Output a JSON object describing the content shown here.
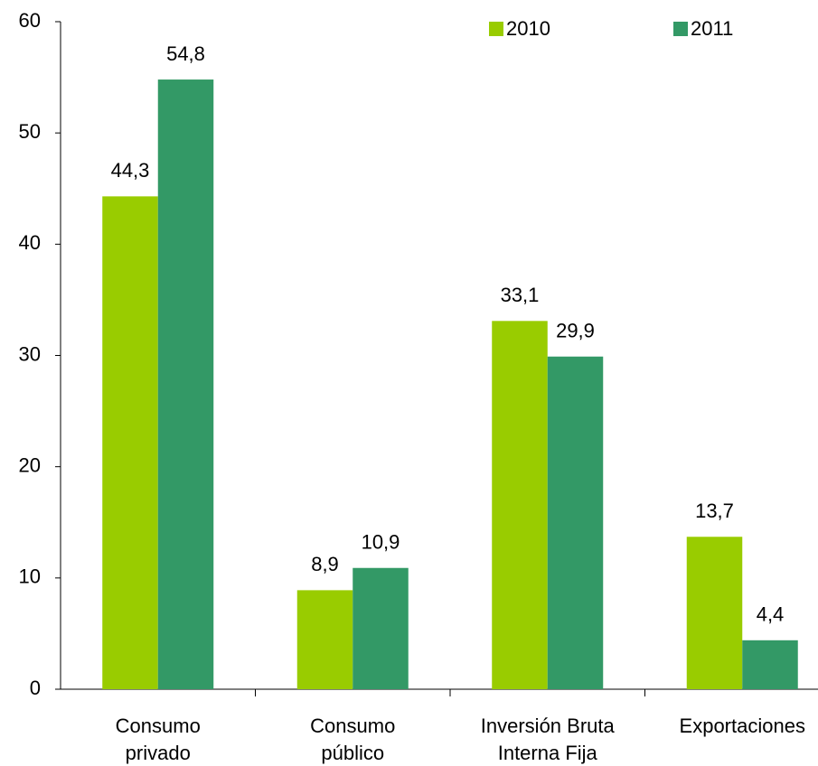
{
  "chart_data": {
    "type": "bar",
    "categories": [
      [
        "Consumo",
        "privado"
      ],
      [
        "Consumo",
        "público"
      ],
      [
        "Inversión Bruta",
        "Interna Fija"
      ],
      [
        "Exportaciones"
      ]
    ],
    "series": [
      {
        "name": "2010",
        "color": "#99cc00",
        "values": [
          44.3,
          8.9,
          33.1,
          13.7
        ],
        "value_labels": [
          "44,3",
          "8,9",
          "33,1",
          "13,7"
        ]
      },
      {
        "name": "2011",
        "color": "#339966",
        "values": [
          54.8,
          10.9,
          29.9,
          4.4
        ],
        "value_labels": [
          "54,8",
          "10,9",
          "29,9",
          "4,4"
        ]
      }
    ],
    "ylim": [
      0,
      60
    ],
    "yticks": [
      0,
      10,
      20,
      30,
      40,
      50,
      60
    ],
    "grid": false,
    "legend": "top-right"
  }
}
